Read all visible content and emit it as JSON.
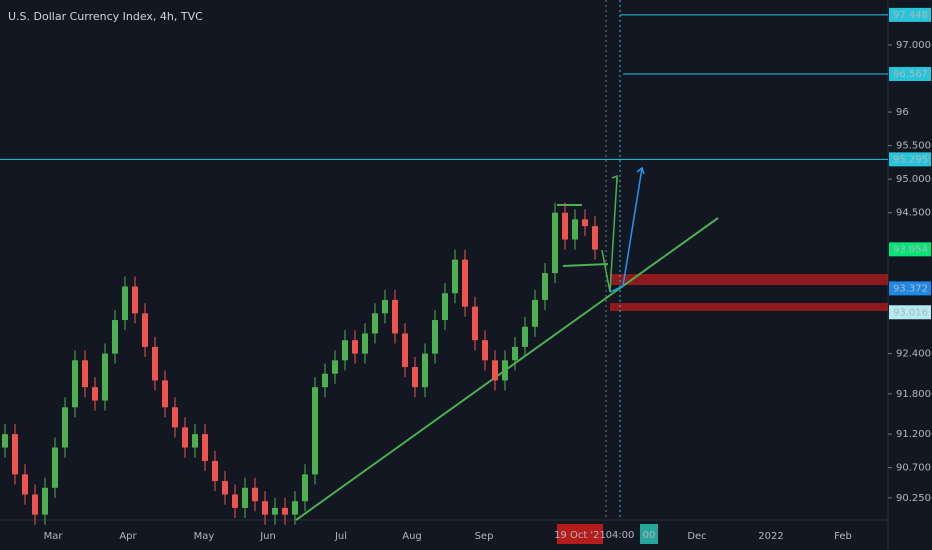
{
  "chart_data": {
    "type": "candlestick",
    "title": "U.S. Dollar Currency Index, 4h, TVC",
    "open": [
      91.0,
      91.2,
      90.6,
      90.3,
      90.0,
      90.4,
      91.0,
      91.6,
      92.3,
      91.9,
      91.7,
      92.4,
      92.9,
      93.4,
      93.0,
      92.5,
      92.0,
      91.6,
      91.3,
      91.0,
      91.2,
      90.8,
      90.5,
      90.3,
      90.1,
      90.4,
      90.2,
      90.0,
      90.1,
      90.0,
      90.2,
      90.6,
      91.9,
      92.1,
      92.3,
      92.6,
      92.4,
      92.7,
      93.0,
      93.2,
      92.7,
      92.2,
      91.9,
      92.4,
      92.9,
      93.3,
      93.8,
      93.1,
      92.6,
      92.3,
      92.0,
      92.3,
      92.5,
      92.8,
      93.2,
      93.6,
      94.5,
      94.1,
      94.4,
      94.3
    ],
    "high": [
      91.35,
      91.35,
      90.75,
      90.45,
      90.55,
      91.15,
      91.75,
      92.45,
      92.45,
      92.05,
      92.55,
      93.05,
      93.55,
      93.55,
      93.15,
      92.65,
      92.15,
      91.75,
      91.45,
      91.35,
      91.35,
      90.95,
      90.65,
      90.45,
      90.55,
      90.55,
      90.35,
      90.25,
      90.25,
      90.35,
      90.75,
      92.05,
      92.25,
      92.45,
      92.75,
      92.75,
      92.85,
      93.15,
      93.35,
      93.35,
      92.85,
      92.35,
      92.55,
      93.05,
      93.45,
      93.95,
      93.95,
      93.25,
      92.75,
      92.45,
      92.45,
      92.65,
      92.95,
      93.35,
      93.75,
      94.65,
      94.65,
      94.55,
      94.55,
      94.45
    ],
    "low": [
      90.85,
      90.45,
      90.15,
      89.85,
      89.85,
      90.25,
      90.85,
      91.45,
      91.75,
      91.55,
      91.55,
      92.25,
      92.75,
      92.85,
      92.35,
      91.85,
      91.45,
      91.15,
      90.85,
      90.85,
      90.65,
      90.35,
      90.15,
      89.95,
      89.95,
      90.05,
      89.85,
      89.85,
      89.85,
      89.85,
      90.05,
      90.45,
      91.75,
      91.95,
      92.15,
      92.25,
      92.25,
      92.55,
      92.85,
      92.55,
      92.05,
      91.75,
      91.75,
      92.25,
      92.75,
      93.15,
      92.95,
      92.45,
      92.15,
      91.85,
      91.85,
      92.15,
      92.35,
      92.65,
      93.05,
      93.45,
      93.95,
      93.95,
      94.15,
      93.8
    ],
    "close": [
      91.2,
      90.6,
      90.3,
      90.0,
      90.4,
      91.0,
      91.6,
      92.3,
      91.9,
      91.7,
      92.4,
      92.9,
      93.4,
      93.0,
      92.5,
      92.0,
      91.6,
      91.3,
      91.0,
      91.2,
      90.8,
      90.5,
      90.3,
      90.1,
      90.4,
      90.2,
      90.0,
      90.1,
      90.0,
      90.2,
      90.6,
      91.9,
      92.1,
      92.3,
      92.6,
      92.4,
      92.7,
      93.0,
      93.2,
      92.7,
      92.2,
      91.9,
      92.4,
      92.9,
      93.3,
      93.8,
      93.1,
      92.6,
      92.3,
      92.0,
      92.3,
      92.5,
      92.8,
      93.2,
      93.6,
      94.5,
      94.1,
      94.4,
      94.3,
      93.95
    ],
    "up_color": "#4caf50",
    "down_color": "#ef5350",
    "ylim": [
      89.92,
      97.67
    ],
    "yticks": [
      {
        "value": 97,
        "label": "97.000"
      },
      96.0,
      {
        "value": 95.5,
        "label": "95.500"
      },
      {
        "value": 95,
        "label": "95.000"
      },
      {
        "value": 94.5,
        "label": "94.500"
      },
      {
        "value": 92.4,
        "label": "92.400"
      },
      {
        "value": 91.8,
        "label": "91.800"
      },
      {
        "value": 91.2,
        "label": "91.200"
      },
      {
        "value": 90.7,
        "label": "90.700"
      },
      {
        "value": 90.25,
        "label": "90.250"
      }
    ],
    "xticks": [
      "Mar",
      "Apr",
      "May",
      "Jun",
      "Jul",
      "Aug",
      "Sep",
      "Dec",
      "2022",
      "Feb"
    ],
    "price_levels": [
      {
        "value": 97.448,
        "color": "#26c6da"
      },
      {
        "value": 96.567,
        "color": "#26c6da"
      },
      {
        "value": 95.295,
        "color": "#26c6da"
      },
      {
        "value": 93.954,
        "color": "#00e676"
      },
      {
        "value": 93.372,
        "color": "#1e88e5"
      },
      {
        "value": 93.016,
        "color": "#b2ebf2"
      }
    ],
    "time_labels": [
      "19 Oct '21",
      "04:00",
      "00"
    ]
  }
}
